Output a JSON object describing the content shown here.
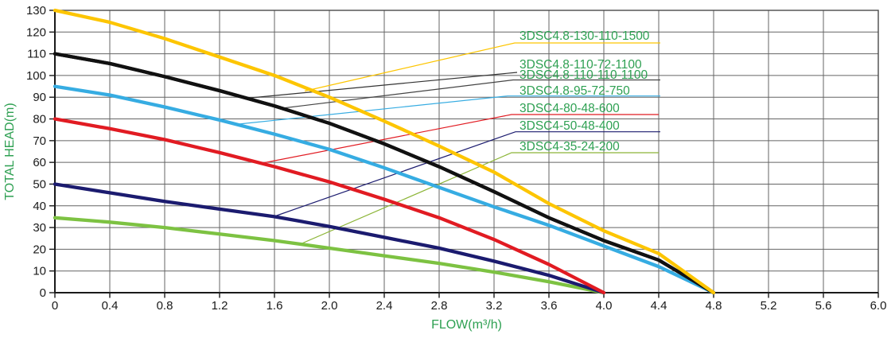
{
  "chart_data": {
    "type": "line",
    "title": "",
    "xlabel": "FLOW(m³/h)",
    "ylabel": "TOTAL HEAD(m)",
    "xlim": [
      0,
      6.0
    ],
    "ylim": [
      0,
      130
    ],
    "x_tick_labels": [
      "0",
      "0.4",
      "0.8",
      "1.2",
      "1.6",
      "2.0",
      "2.4",
      "2.8",
      "3.2",
      "3.6",
      "4.0",
      "4.4",
      "4.8",
      "5.2",
      "5.6",
      "6.0"
    ],
    "x_ticks": [
      0,
      0.4,
      0.8,
      1.2,
      1.6,
      2.0,
      2.4,
      2.8,
      3.2,
      3.6,
      4.0,
      4.4,
      4.8,
      5.2,
      5.6,
      6.0
    ],
    "y_tick_labels": [
      "0",
      "10",
      "20",
      "30",
      "40",
      "50",
      "60",
      "70",
      "80",
      "90",
      "100",
      "110",
      "120",
      "130"
    ],
    "y_ticks": [
      0,
      10,
      20,
      30,
      40,
      50,
      60,
      70,
      80,
      90,
      100,
      110,
      120,
      130
    ],
    "grid": true,
    "legend_position": "inline-labels-upper-right",
    "colors": {
      "axis_title": "#2ea052",
      "label_text": "#2ea052",
      "tick_text": "#1a1a1a",
      "grid": "#646464",
      "frame": "#4a4a4a",
      "axis": "#1a1a1a"
    },
    "series": [
      {
        "name": "3DSC4.8-130-110-1500",
        "color": "#fdc500",
        "points": [
          [
            0,
            130
          ],
          [
            0.4,
            124.5
          ],
          [
            0.8,
            117
          ],
          [
            1.2,
            108.5
          ],
          [
            1.6,
            100
          ],
          [
            2.0,
            90
          ],
          [
            2.4,
            79
          ],
          [
            2.8,
            67.5
          ],
          [
            3.2,
            55.5
          ],
          [
            3.6,
            41
          ],
          [
            4.0,
            28.5
          ],
          [
            4.4,
            18
          ],
          [
            4.8,
            0
          ]
        ]
      },
      {
        "name": "3DSC4.8-110-72-1100",
        "color": "#111111",
        "points": [
          [
            0,
            110
          ],
          [
            0.4,
            105.5
          ],
          [
            0.8,
            99.5
          ],
          [
            1.2,
            93
          ],
          [
            1.6,
            86
          ],
          [
            2.0,
            78
          ],
          [
            2.4,
            68.5
          ],
          [
            2.8,
            58
          ],
          [
            3.2,
            46.5
          ],
          [
            3.6,
            34.5
          ],
          [
            4.0,
            24
          ],
          [
            4.4,
            15
          ],
          [
            4.8,
            0
          ]
        ]
      },
      {
        "name": "3DSC4.8-110-110-1100",
        "color": "#111111",
        "points": [
          [
            0,
            110
          ],
          [
            0.4,
            105.5
          ],
          [
            0.8,
            99.5
          ],
          [
            1.2,
            93
          ],
          [
            1.6,
            86
          ],
          [
            2.0,
            78
          ],
          [
            2.4,
            68.5
          ],
          [
            2.8,
            58
          ],
          [
            3.2,
            46.5
          ],
          [
            3.6,
            34.5
          ],
          [
            4.0,
            24
          ],
          [
            4.4,
            15
          ],
          [
            4.8,
            0
          ]
        ]
      },
      {
        "name": "3DSC4.8-95-72-750",
        "color": "#36ace2",
        "points": [
          [
            0,
            95
          ],
          [
            0.4,
            91
          ],
          [
            0.8,
            85.5
          ],
          [
            1.2,
            79.5
          ],
          [
            1.6,
            73
          ],
          [
            2.0,
            66
          ],
          [
            2.4,
            57.5
          ],
          [
            2.8,
            48.5
          ],
          [
            3.2,
            39.5
          ],
          [
            3.6,
            31
          ],
          [
            4.0,
            21.5
          ],
          [
            4.4,
            12
          ],
          [
            4.8,
            0
          ]
        ]
      },
      {
        "name": "3DSC4-80-48-600",
        "color": "#e11b22",
        "points": [
          [
            0,
            80
          ],
          [
            0.4,
            75.5
          ],
          [
            0.8,
            70.5
          ],
          [
            1.2,
            64.5
          ],
          [
            1.6,
            58
          ],
          [
            2.0,
            51
          ],
          [
            2.4,
            43
          ],
          [
            2.8,
            34.5
          ],
          [
            3.2,
            24.5
          ],
          [
            3.6,
            13
          ],
          [
            4.0,
            0
          ]
        ]
      },
      {
        "name": "3DSC4-50-48-400",
        "color": "#1b1b6f",
        "points": [
          [
            0,
            50
          ],
          [
            0.4,
            46
          ],
          [
            0.8,
            42
          ],
          [
            1.2,
            38.5
          ],
          [
            1.6,
            35
          ],
          [
            2.0,
            30.5
          ],
          [
            2.4,
            25.5
          ],
          [
            2.8,
            20.5
          ],
          [
            3.2,
            14.5
          ],
          [
            3.6,
            8
          ],
          [
            4.0,
            0
          ]
        ]
      },
      {
        "name": "3DSC4-35-24-200",
        "color": "#7dc242",
        "points": [
          [
            0,
            34.5
          ],
          [
            0.4,
            32.5
          ],
          [
            0.8,
            30
          ],
          [
            1.2,
            27
          ],
          [
            1.6,
            24
          ],
          [
            2.0,
            20.5
          ],
          [
            2.4,
            17
          ],
          [
            2.8,
            13.5
          ],
          [
            3.2,
            9.5
          ],
          [
            3.6,
            5
          ],
          [
            4.0,
            0
          ]
        ]
      }
    ],
    "labels": [
      {
        "text": "3DSC4.8-130-110-1500",
        "leader_color": "#fdc500"
      },
      {
        "text": "3DSC4.8-110-72-1100",
        "leader_color": "#333333"
      },
      {
        "text": "3DSC4.8-110-110-1100",
        "leader_color": "#444444"
      },
      {
        "text": "3DSC4.8-95-72-750",
        "leader_color": "#36ace2"
      },
      {
        "text": "3DSC4-80-48-600",
        "leader_color": "#e11b22"
      },
      {
        "text": "3DSC4-50-48-400",
        "leader_color": "#1b1b6f"
      },
      {
        "text": "3DSC4-35-24-200",
        "leader_color": "#8cb537"
      }
    ]
  }
}
